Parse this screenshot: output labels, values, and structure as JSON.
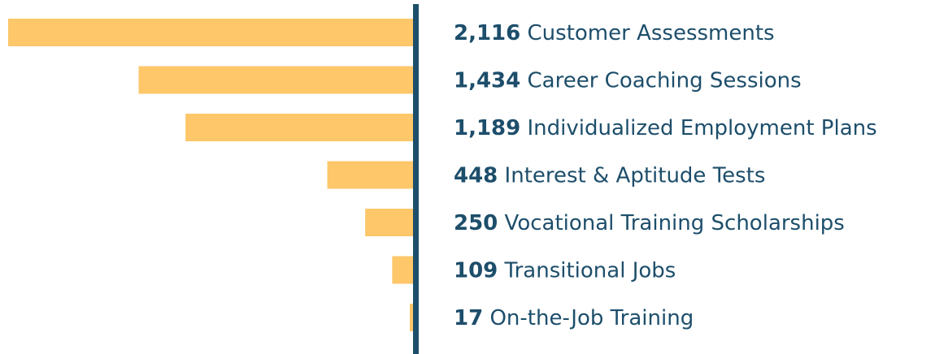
{
  "chart_data": {
    "type": "bar",
    "orientation": "horizontal",
    "categories": [
      "Customer Assessments",
      "Career Coaching Sessions",
      "Individualized Employment Plans",
      "Interest & Aptitude Tests",
      "Vocational Training Scholarships",
      "Transitional Jobs",
      "On-the-Job Training"
    ],
    "values": [
      2116,
      1434,
      1189,
      448,
      250,
      109,
      17
    ],
    "value_labels": [
      "2,116",
      "1,434",
      "1,189",
      "448",
      "250",
      "109",
      "17"
    ],
    "color": "#fdc76a"
  }
}
